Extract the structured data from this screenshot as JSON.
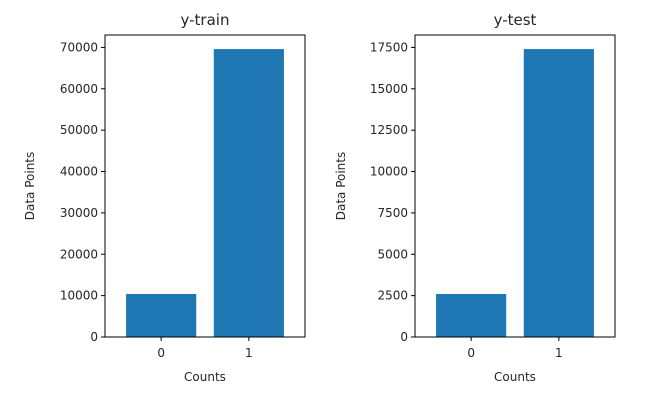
{
  "chart_data": [
    {
      "type": "bar",
      "title": "y-train",
      "xlabel": "Counts",
      "ylabel": "Data Points",
      "categories": [
        "0",
        "1"
      ],
      "values": [
        10400,
        69600
      ],
      "ylim": [
        0,
        73000
      ],
      "yticks": [
        0,
        10000,
        20000,
        30000,
        40000,
        50000,
        60000,
        70000
      ],
      "ytick_labels": [
        "0",
        "10000",
        "20000",
        "30000",
        "40000",
        "50000",
        "60000",
        "70000"
      ],
      "grid": false,
      "bar_color": "#1f77b4"
    },
    {
      "type": "bar",
      "title": "y-test",
      "xlabel": "Counts",
      "ylabel": "Data Points",
      "categories": [
        "0",
        "1"
      ],
      "values": [
        2600,
        17400
      ],
      "ylim": [
        0,
        18250
      ],
      "yticks": [
        0,
        2500,
        5000,
        7500,
        10000,
        12500,
        15000,
        17500
      ],
      "ytick_labels": [
        "0",
        "2500",
        "5000",
        "7500",
        "10000",
        "12500",
        "15000",
        "17500"
      ],
      "grid": false,
      "bar_color": "#1f77b4"
    }
  ]
}
